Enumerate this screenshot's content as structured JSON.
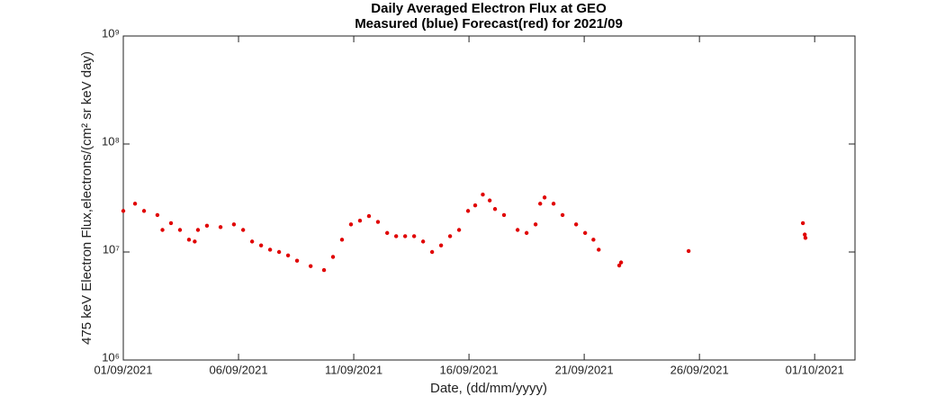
{
  "chart_data": {
    "type": "scatter",
    "title": "Daily Averaged Electron Flux at GEO",
    "subtitle": "Measured (blue) Forecast(red) for 2021/09",
    "x_label": "Date, (dd/mm/yyyy)",
    "y_label": "475 keV Electron Flux,electrons/(cm² sr keV day)",
    "y_scale": "log",
    "color": "#e00000",
    "xlim": [
      1,
      32.75
    ],
    "xticks": [
      {
        "value": 1,
        "label": "01/09/2021"
      },
      {
        "value": 6,
        "label": "06/09/2021"
      },
      {
        "value": 11,
        "label": "11/09/2021"
      },
      {
        "value": 16,
        "label": "16/09/2021"
      },
      {
        "value": 21,
        "label": "21/09/2021"
      },
      {
        "value": 26,
        "label": "26/09/2021"
      },
      {
        "value": 31,
        "label": "01/10/2021"
      }
    ],
    "ylim": [
      1000000,
      1000000000
    ],
    "yticks": [
      {
        "value": 1000000,
        "label": "10⁶"
      },
      {
        "value": 10000000,
        "label": "10⁷"
      },
      {
        "value": 100000000,
        "label": "10⁸"
      },
      {
        "value": 1000000000,
        "label": "10⁹"
      }
    ],
    "x": [
      1,
      1.51,
      1.9,
      2.48,
      2.7,
      3.07,
      3.46,
      3.85,
      4.1,
      4.24,
      4.63,
      5.22,
      5.8,
      6.2,
      6.59,
      6.98,
      7.37,
      7.76,
      8.15,
      8.54,
      9.13,
      9.71,
      10.1,
      10.49,
      10.88,
      11.27,
      11.66,
      12.05,
      12.45,
      12.84,
      13.23,
      13.62,
      14.01,
      14.4,
      14.79,
      15.18,
      15.57,
      15.96,
      16.27,
      16.6,
      16.9,
      17.13,
      17.52,
      18.11,
      18.5,
      18.89,
      19.09,
      19.28,
      19.67,
      20.06,
      20.65,
      21.04,
      21.4,
      21.63,
      22.52,
      22.6,
      25.53,
      30.49,
      30.57,
      30.6
    ],
    "values": [
      24000000,
      28000000,
      24000000,
      22000000,
      16000000,
      18500000,
      16000000,
      13000000,
      12500000,
      16000000,
      17500000,
      17000000,
      18000000,
      16000000,
      12500000,
      11500000,
      10500000,
      10000000,
      9300000,
      8300000,
      7400000,
      6800000,
      9000000,
      13000000,
      18000000,
      19500000,
      21500000,
      19000000,
      15000000,
      14000000,
      14000000,
      14000000,
      12500000,
      10000000,
      11500000,
      14000000,
      16000000,
      24000000,
      27000000,
      34000000,
      30000000,
      25000000,
      22000000,
      16000000,
      15000000,
      18000000,
      28000000,
      32000000,
      28000000,
      22000000,
      18000000,
      15000000,
      13000000,
      10500000,
      7500000,
      8000000,
      10200000,
      18500000,
      14500000,
      13500000
    ]
  }
}
